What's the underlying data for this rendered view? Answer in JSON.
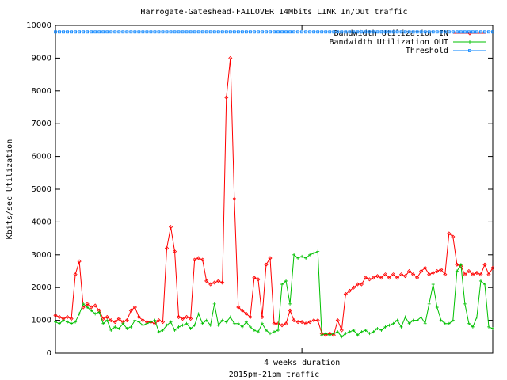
{
  "chart_data": {
    "type": "line",
    "title": "Harrogate-Gateshead-FAILOVER 14Mbits LINK In/Out traffic",
    "y_label": "Kbits/sec Utilization",
    "x_label": "2015pm-21pm traffic",
    "x": [
      0,
      1,
      2,
      3,
      4,
      5,
      6,
      7,
      8,
      9,
      10,
      11,
      12,
      13,
      14,
      15,
      16,
      17,
      18,
      19,
      20,
      21,
      22,
      23,
      24,
      25,
      26,
      27,
      28,
      29,
      30,
      31,
      32,
      33,
      34,
      35,
      36,
      37,
      38,
      39,
      40,
      41,
      42,
      43,
      44,
      45,
      46,
      47,
      48,
      49,
      50,
      51,
      52,
      53,
      54,
      55,
      56,
      57,
      58,
      59,
      60,
      61,
      62,
      63,
      64,
      65,
      66,
      67,
      68,
      69,
      70,
      71,
      72,
      73,
      74,
      75,
      76,
      77,
      78,
      79,
      80,
      81,
      82,
      83,
      84,
      85,
      86,
      87,
      88,
      89,
      90,
      91,
      92,
      93,
      94,
      95,
      96,
      97,
      98,
      99,
      100,
      101,
      102,
      103,
      104,
      105,
      106,
      107,
      108,
      109,
      110
    ],
    "xlim": [
      0,
      110
    ],
    "xticks": [
      {
        "value": 62,
        "label": "4 weeks duration"
      }
    ],
    "ylim": [
      0,
      10000
    ],
    "yticks": [
      0,
      1000,
      2000,
      3000,
      4000,
      5000,
      6000,
      7000,
      8000,
      9000,
      10000
    ],
    "legend": "top-right",
    "series": [
      {
        "name": "Bandwidth Utilization IN",
        "color": "#ff0000",
        "marker": "diamond",
        "values": [
          1150,
          1100,
          1050,
          1100,
          1050,
          2400,
          2800,
          1400,
          1500,
          1400,
          1450,
          1300,
          1050,
          1100,
          1000,
          950,
          1050,
          950,
          1000,
          1300,
          1400,
          1100,
          1000,
          950,
          950,
          900,
          1000,
          950,
          3200,
          3850,
          3100,
          1100,
          1050,
          1100,
          1050,
          2850,
          2900,
          2850,
          2200,
          2100,
          2150,
          2200,
          2150,
          7800,
          9000,
          4700,
          1400,
          1300,
          1200,
          1100,
          2300,
          2250,
          1100,
          2700,
          2900,
          900,
          900,
          850,
          900,
          1300,
          1000,
          950,
          950,
          900,
          950,
          1000,
          1000,
          600,
          550,
          600,
          550,
          1000,
          700,
          1800,
          1900,
          2000,
          2100,
          2100,
          2300,
          2250,
          2300,
          2350,
          2300,
          2400,
          2300,
          2400,
          2300,
          2400,
          2350,
          2500,
          2400,
          2300,
          2500,
          2600,
          2400,
          2450,
          2500,
          2550,
          2400,
          3650,
          3550,
          2700,
          2650,
          2400,
          2500,
          2400,
          2450,
          2400,
          2700,
          2400,
          2600
        ]
      },
      {
        "name": "Bandwidth Utilization OUT",
        "color": "#00c000",
        "marker": "plus",
        "values": [
          950,
          900,
          1000,
          950,
          900,
          950,
          1200,
          1500,
          1400,
          1300,
          1200,
          1250,
          900,
          1000,
          700,
          800,
          750,
          900,
          750,
          800,
          1000,
          950,
          850,
          900,
          950,
          1000,
          650,
          700,
          850,
          950,
          700,
          800,
          850,
          900,
          750,
          850,
          1200,
          900,
          1000,
          850,
          1500,
          850,
          1000,
          950,
          1100,
          900,
          900,
          800,
          950,
          800,
          700,
          650,
          900,
          700,
          600,
          650,
          700,
          2100,
          2200,
          1500,
          3000,
          2900,
          2950,
          2900,
          3000,
          3050,
          3100,
          550,
          600,
          550,
          600,
          650,
          500,
          600,
          650,
          700,
          550,
          650,
          700,
          600,
          650,
          750,
          700,
          800,
          850,
          900,
          1000,
          800,
          1100,
          900,
          1000,
          1000,
          1100,
          900,
          1500,
          2100,
          1400,
          1000,
          900,
          900,
          1000,
          2500,
          2700,
          1500,
          900,
          800,
          1100,
          2200,
          2100,
          800,
          750
        ]
      },
      {
        "name": "Threshold",
        "color": "#0080ff",
        "marker": "square",
        "values": [
          9800,
          9800,
          9800,
          9800,
          9800,
          9800,
          9800,
          9800,
          9800,
          9800,
          9800,
          9800,
          9800,
          9800,
          9800,
          9800,
          9800,
          9800,
          9800,
          9800,
          9800,
          9800,
          9800,
          9800,
          9800,
          9800,
          9800,
          9800,
          9800,
          9800,
          9800,
          9800,
          9800,
          9800,
          9800,
          9800,
          9800,
          9800,
          9800,
          9800,
          9800,
          9800,
          9800,
          9800,
          9800,
          9800,
          9800,
          9800,
          9800,
          9800,
          9800,
          9800,
          9800,
          9800,
          9800,
          9800,
          9800,
          9800,
          9800,
          9800,
          9800,
          9800,
          9800,
          9800,
          9800,
          9800,
          9800,
          9800,
          9800,
          9800,
          9800,
          9800,
          9800,
          9800,
          9800,
          9800,
          9800,
          9800,
          9800,
          9800,
          9800,
          9800,
          9800,
          9800,
          9800,
          9800,
          9800,
          9800,
          9800,
          9800,
          9800,
          9800,
          9800,
          9800,
          9800,
          9800,
          9800,
          9800,
          9800,
          9800,
          9800,
          9800,
          9800,
          9800,
          9800,
          9800,
          9800,
          9800,
          9800,
          9800,
          9800
        ]
      }
    ]
  }
}
